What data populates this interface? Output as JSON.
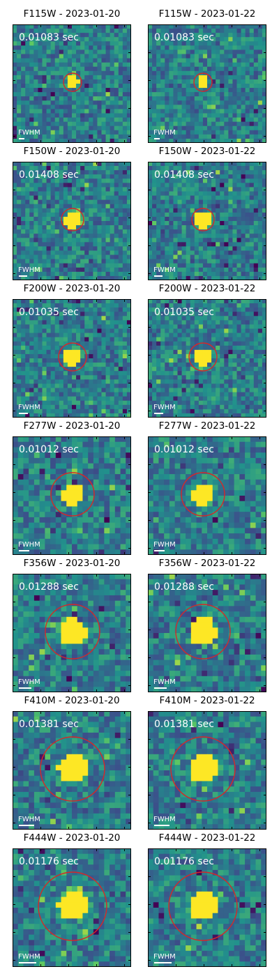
{
  "panels": [
    {
      "filter": "F115W",
      "date": "2023-01-20",
      "title": "F115W - 2023-01-20",
      "exposure": "0.01083 sec",
      "fwhm_label": "FWHM"
    },
    {
      "filter": "F115W",
      "date": "2023-01-22",
      "title": "F115W - 2023-01-22",
      "exposure": "0.01083 sec",
      "fwhm_label": "FWHM"
    },
    {
      "filter": "F150W",
      "date": "2023-01-20",
      "title": "F150W - 2023-01-20",
      "exposure": "0.01408 sec",
      "fwhm_label": "FWHM"
    },
    {
      "filter": "F150W",
      "date": "2023-01-22",
      "title": "F150W - 2023-01-22",
      "exposure": "0.01408 sec",
      "fwhm_label": "FWHM"
    },
    {
      "filter": "F200W",
      "date": "2023-01-20",
      "title": "F200W - 2023-01-20",
      "exposure": "0.01035 sec",
      "fwhm_label": "FWHM"
    },
    {
      "filter": "F200W",
      "date": "2023-01-22",
      "title": "F200W - 2023-01-22",
      "exposure": "0.01035 sec",
      "fwhm_label": "FWHM"
    },
    {
      "filter": "F277W",
      "date": "2023-01-20",
      "title": "F277W - 2023-01-20",
      "exposure": "0.01012 sec",
      "fwhm_label": "FWHM"
    },
    {
      "filter": "F277W",
      "date": "2023-01-22",
      "title": "F277W - 2023-01-22",
      "exposure": "0.01012 sec",
      "fwhm_label": "FWHM"
    },
    {
      "filter": "F356W",
      "date": "2023-01-20",
      "title": "F356W - 2023-01-20",
      "exposure": "0.01288 sec",
      "fwhm_label": "FWHM"
    },
    {
      "filter": "F356W",
      "date": "2023-01-22",
      "title": "F356W - 2023-01-22",
      "exposure": "0.01288 sec",
      "fwhm_label": "FWHM"
    },
    {
      "filter": "F410M",
      "date": "2023-01-20",
      "title": "F410M - 2023-01-20",
      "exposure": "0.01381 sec",
      "fwhm_label": "FWHM"
    },
    {
      "filter": "F410M",
      "date": "2023-01-22",
      "title": "F410M - 2023-01-22",
      "exposure": "0.01381 sec",
      "fwhm_label": "FWHM"
    },
    {
      "filter": "F444W",
      "date": "2023-01-20",
      "title": "F444W - 2023-01-20",
      "exposure": "0.01176 sec",
      "fwhm_label": "FWHM"
    },
    {
      "filter": "F444W",
      "date": "2023-01-22",
      "title": "F444W - 2023-01-22",
      "exposure": "0.01176 sec",
      "fwhm_label": "FWHM"
    }
  ],
  "colors": {
    "aperture_circle": "#d62728",
    "source": "#fde725",
    "background_low": "#440154",
    "background_mid": "#31688e",
    "background_high": "#35b779",
    "text": "#ffffff"
  }
}
